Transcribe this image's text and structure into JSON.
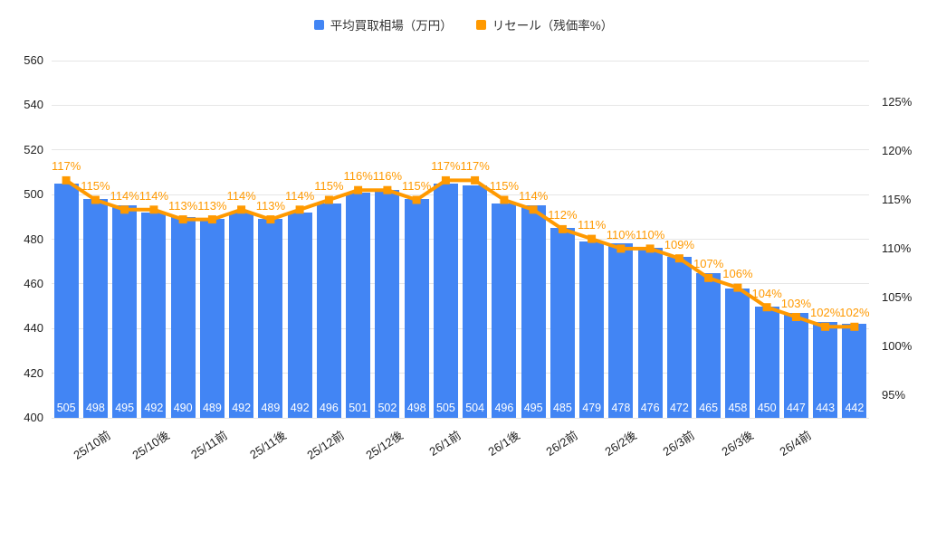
{
  "chart_data": {
    "type": "combo-bar-line",
    "title": "",
    "categories": [
      "25/10前",
      "25/10後",
      "25/11前",
      "25/11後",
      "25/12前",
      "25/12後",
      "26/1前",
      "26/1後",
      "26/2前",
      "26/2後",
      "26/3前",
      "26/3後",
      "26/4前"
    ],
    "categories_note": "one label per two bars, anchored under even bars",
    "series": [
      {
        "name": "平均買取相場（万円）",
        "type": "bar",
        "axis": "left",
        "color": "#4285F4",
        "values": [
          505,
          498,
          495,
          492,
          490,
          489,
          492,
          489,
          492,
          496,
          501,
          502,
          498,
          505,
          504,
          496,
          495,
          485,
          479,
          478,
          476,
          472,
          465,
          458,
          450,
          447,
          443,
          442
        ]
      },
      {
        "name": "リセール（残価率%）",
        "type": "line",
        "axis": "right",
        "color": "#FF9900",
        "values": [
          117,
          115,
          114,
          114,
          113,
          113,
          114,
          113,
          114,
          115,
          116,
          116,
          115,
          117,
          117,
          115,
          114,
          112,
          111,
          110,
          110,
          109,
          107,
          106,
          104,
          103,
          102,
          102
        ],
        "labels": [
          "117%",
          "115%",
          "114%",
          "114%",
          "113%",
          "113%",
          "114%",
          "113%",
          "114%",
          "115%",
          "116%",
          "116%",
          "115%",
          "117%",
          "117%",
          "115%",
          "114%",
          "112%",
          "111%",
          "110%",
          "110%",
          "109%",
          "107%",
          "106%",
          "104%",
          "103%",
          "102%",
          "102%"
        ]
      }
    ],
    "left_axis": {
      "min": 400,
      "max": 560,
      "ticks": [
        560,
        540,
        520,
        500,
        480,
        460,
        440,
        420,
        400
      ]
    },
    "right_axis": {
      "min": 95,
      "max": 125,
      "ticks": [
        125,
        120,
        115,
        110,
        105,
        100,
        95
      ],
      "tick_labels": [
        "125%",
        "120%",
        "115%",
        "110%",
        "105%",
        "100%",
        "95%"
      ]
    },
    "legend_position": "top",
    "grid": "horizontal",
    "colors": {
      "bar": "#4285F4",
      "line": "#FF9900",
      "grid": "#e6e6e6",
      "axis_text": "#1f1f1f",
      "bar_label": "#ffffff",
      "background": "#ffffff"
    }
  }
}
